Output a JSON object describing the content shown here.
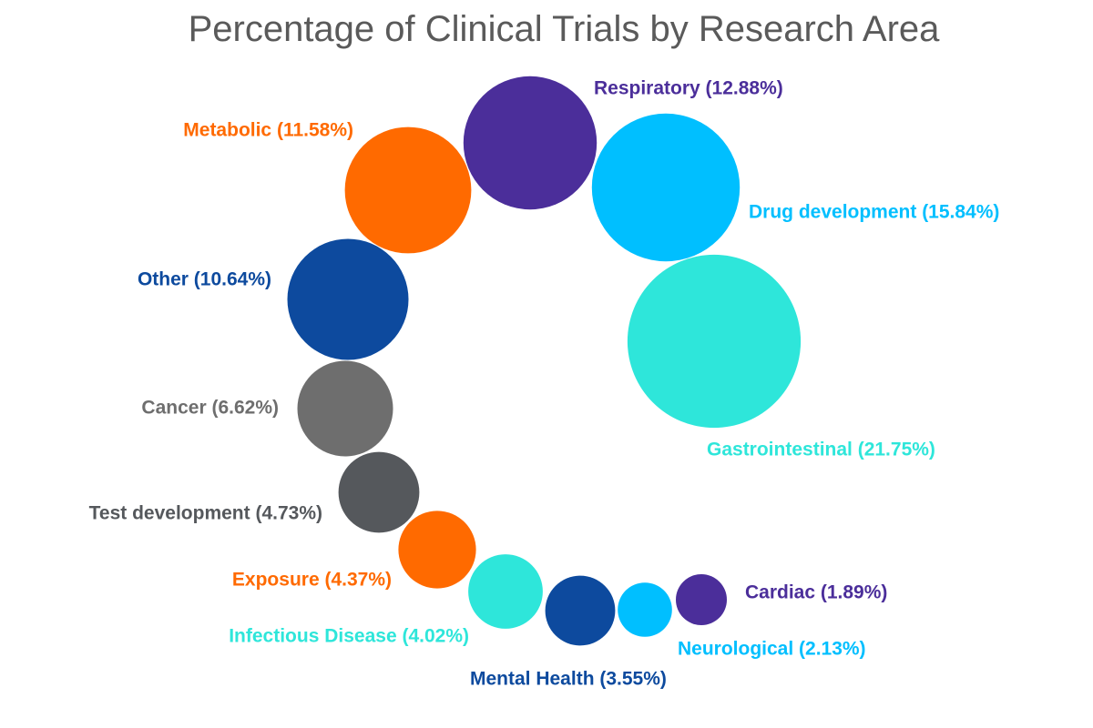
{
  "chart_data": {
    "type": "bubble",
    "title": "Percentage of Clinical Trials by Research Area",
    "unit": "%",
    "series": [
      {
        "label": "Respiratory (12.88%)",
        "name": "Respiratory",
        "value": 12.88,
        "color": "#4b2e9a"
      },
      {
        "label": "Drug development (15.84%)",
        "name": "Drug development",
        "value": 15.84,
        "color": "#00bfff"
      },
      {
        "label": "Gastrointestinal (21.75%)",
        "name": "Gastrointestinal",
        "value": 21.75,
        "color": "#2ee6da"
      },
      {
        "label": "Cardiac (1.89%)",
        "name": "Cardiac",
        "value": 1.89,
        "color": "#4b2e9a"
      },
      {
        "label": "Neurological (2.13%)",
        "name": "Neurological",
        "value": 2.13,
        "color": "#00bfff"
      },
      {
        "label": "Mental Health (3.55%)",
        "name": "Mental Health",
        "value": 3.55,
        "color": "#0d4a9e"
      },
      {
        "label": "Infectious Disease (4.02%)",
        "name": "Infectious Disease",
        "value": 4.02,
        "color": "#2ee6da"
      },
      {
        "label": "Exposure (4.37%)",
        "name": "Exposure",
        "value": 4.37,
        "color": "#ff6a00"
      },
      {
        "label": "Test development (4.73%)",
        "name": "Test development",
        "value": 4.73,
        "color": "#55585c"
      },
      {
        "label": "Cancer (6.62%)",
        "name": "Cancer",
        "value": 6.62,
        "color": "#6e6e6e"
      },
      {
        "label": "Other (10.64%)",
        "name": "Other",
        "value": 10.64,
        "color": "#0d4a9e"
      },
      {
        "label": "Metabolic (11.58%)",
        "name": "Metabolic",
        "value": 11.58,
        "color": "#ff6a00"
      }
    ]
  }
}
